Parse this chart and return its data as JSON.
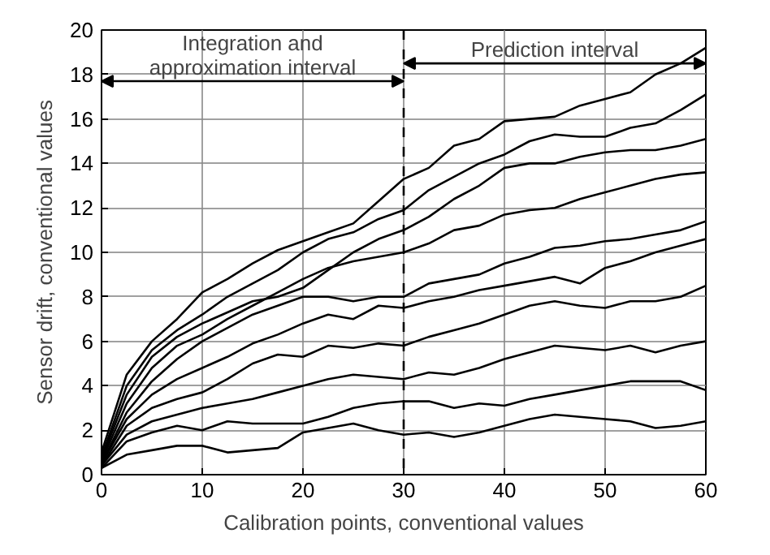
{
  "chart_data": {
    "type": "line",
    "xlabel": "Calibration points, conventional values",
    "ylabel": "Sensor drift, conventional values",
    "x": [
      0,
      2.5,
      5,
      7.5,
      10,
      12.5,
      15,
      17.5,
      20,
      22.5,
      25,
      27.5,
      30,
      32.5,
      35,
      37.5,
      40,
      42.5,
      45,
      47.5,
      50,
      52.5,
      55,
      57.5,
      60
    ],
    "xlim": [
      0,
      60
    ],
    "xticks": [
      0,
      10,
      20,
      30,
      40,
      50,
      60
    ],
    "ylim": [
      0,
      20
    ],
    "yticks": [
      0,
      2,
      4,
      6,
      8,
      10,
      12,
      14,
      16,
      18,
      20
    ],
    "grid": true,
    "line_style": "solid",
    "series": [
      {
        "color": "#000000",
        "values": [
          1.0,
          4.5,
          6.0,
          7.0,
          8.2,
          8.8,
          9.5,
          10.1,
          10.5,
          10.9,
          11.3,
          12.3,
          13.3,
          13.8,
          14.8,
          15.1,
          15.9,
          16.0,
          16.1,
          16.6,
          16.9,
          17.2,
          18.0,
          18.5,
          19.2
        ]
      },
      {
        "color": "#000000",
        "values": [
          0.8,
          4.0,
          5.6,
          6.5,
          7.2,
          8.0,
          8.6,
          9.2,
          10.0,
          10.6,
          10.9,
          11.5,
          11.9,
          12.8,
          13.4,
          14.0,
          14.4,
          15.0,
          15.3,
          15.2,
          15.2,
          15.6,
          15.8,
          16.4,
          17.1
        ]
      },
      {
        "color": "#000000",
        "values": [
          0.7,
          3.6,
          5.3,
          6.2,
          6.8,
          7.3,
          7.8,
          8.0,
          8.4,
          9.2,
          10.0,
          10.6,
          11.0,
          11.6,
          12.4,
          13.0,
          13.8,
          14.0,
          14.0,
          14.3,
          14.5,
          14.6,
          14.6,
          14.8,
          15.1
        ]
      },
      {
        "color": "#000000",
        "values": [
          0.6,
          3.2,
          4.8,
          5.8,
          6.3,
          7.0,
          7.6,
          8.2,
          8.8,
          9.3,
          9.6,
          9.8,
          10.0,
          10.4,
          11.0,
          11.2,
          11.7,
          11.9,
          12.0,
          12.4,
          12.7,
          13.0,
          13.3,
          13.5,
          13.6
        ]
      },
      {
        "color": "#000000",
        "values": [
          0.5,
          2.8,
          4.2,
          5.2,
          6.0,
          6.6,
          7.2,
          7.6,
          8.0,
          8.0,
          7.8,
          8.0,
          8.0,
          8.6,
          8.8,
          9.0,
          9.5,
          9.8,
          10.2,
          10.3,
          10.5,
          10.6,
          10.8,
          11.0,
          11.4
        ]
      },
      {
        "color": "#000000",
        "values": [
          0.5,
          2.5,
          3.6,
          4.3,
          4.8,
          5.3,
          5.9,
          6.3,
          6.8,
          7.2,
          7.0,
          7.6,
          7.5,
          7.8,
          8.0,
          8.3,
          8.5,
          8.7,
          8.9,
          8.6,
          9.3,
          9.6,
          10.0,
          10.3,
          10.6
        ]
      },
      {
        "color": "#000000",
        "values": [
          0.4,
          2.2,
          3.0,
          3.4,
          3.7,
          4.3,
          5.0,
          5.4,
          5.3,
          5.8,
          5.7,
          5.9,
          5.8,
          6.2,
          6.5,
          6.8,
          7.2,
          7.6,
          7.8,
          7.6,
          7.5,
          7.8,
          7.8,
          8.0,
          8.5
        ]
      },
      {
        "color": "#000000",
        "values": [
          0.4,
          1.8,
          2.4,
          2.7,
          3.0,
          3.2,
          3.4,
          3.7,
          4.0,
          4.3,
          4.5,
          4.4,
          4.3,
          4.6,
          4.5,
          4.8,
          5.2,
          5.5,
          5.8,
          5.7,
          5.6,
          5.8,
          5.5,
          5.8,
          6.0
        ]
      },
      {
        "color": "#000000",
        "values": [
          0.3,
          1.5,
          1.9,
          2.2,
          2.0,
          2.4,
          2.3,
          2.3,
          2.3,
          2.6,
          3.0,
          3.2,
          3.3,
          3.3,
          3.0,
          3.2,
          3.1,
          3.4,
          3.6,
          3.8,
          4.0,
          4.2,
          4.2,
          4.2,
          3.8
        ]
      },
      {
        "color": "#000000",
        "values": [
          0.3,
          0.9,
          1.1,
          1.3,
          1.3,
          1.0,
          1.1,
          1.2,
          1.9,
          2.1,
          2.3,
          2.0,
          1.8,
          1.9,
          1.7,
          1.9,
          2.2,
          2.5,
          2.7,
          2.6,
          2.5,
          2.4,
          2.1,
          2.2,
          2.4
        ]
      }
    ],
    "ref_lines": [
      {
        "axis": "x",
        "value": 30,
        "color": "#000000",
        "line_style": "dashed"
      }
    ],
    "annotations": [
      {
        "text": "Integration and\napproximation interval",
        "x": 30,
        "y": 17.7
      },
      {
        "text": "Prediction interval",
        "x": 30,
        "y": 18.5
      }
    ]
  }
}
